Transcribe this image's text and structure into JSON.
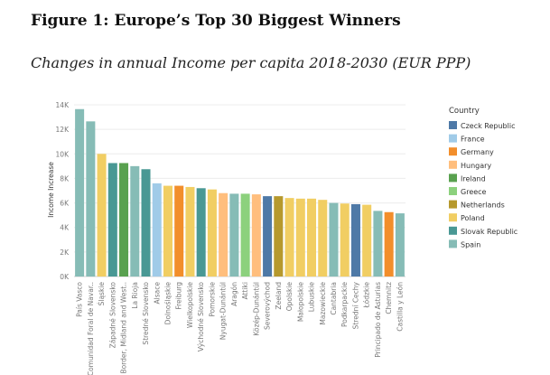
{
  "header": {
    "title": "Figure 1: Europe’s Top 30 Biggest Winners",
    "subtitle": "Changes in annual Income per capita 2018-2030 (EUR PPP)"
  },
  "chart_data": {
    "type": "bar",
    "ylabel": "Income Increase",
    "xlabel": "",
    "ylim": [
      0,
      14000
    ],
    "yticks": [
      {
        "value": 0,
        "label": "0K"
      },
      {
        "value": 2000,
        "label": "2K"
      },
      {
        "value": 4000,
        "label": "4K"
      },
      {
        "value": 6000,
        "label": "6K"
      },
      {
        "value": 8000,
        "label": "8K"
      },
      {
        "value": 10000,
        "label": "10K"
      },
      {
        "value": 12000,
        "label": "12K"
      },
      {
        "value": 14000,
        "label": "14K"
      }
    ],
    "grid": "horizontal",
    "legend_title": "Country",
    "legend_position": "right",
    "legend": [
      {
        "name": "Czeck Republic",
        "color": "#4e79a7"
      },
      {
        "name": "France",
        "color": "#a0cbe8"
      },
      {
        "name": "Germany",
        "color": "#f28e2b"
      },
      {
        "name": "Hungary",
        "color": "#ffbe7d"
      },
      {
        "name": "Ireland",
        "color": "#59a14f"
      },
      {
        "name": "Greece",
        "color": "#8cd17d"
      },
      {
        "name": "Netherlands",
        "color": "#b6992d"
      },
      {
        "name": "Poland",
        "color": "#f1ce63"
      },
      {
        "name": "Slovak Republic",
        "color": "#499894"
      },
      {
        "name": "Spain",
        "color": "#86bcb6"
      }
    ],
    "categories": [
      "País Vasco",
      "Comunidad Foral de Navar..",
      "Śląskie",
      "Západné Slovensko",
      "Border, Midland and West..",
      "La Rioja",
      "Stredné Slovensko",
      "Alsace",
      "Dolnośląskie",
      "Freiburg",
      "Wielkopolskie",
      "Východné Slovensko",
      "Pomorskie",
      "Nyugat-Dunántúl",
      "Aragón",
      "Attiki",
      "Közép-Dunántúl",
      "Severovýchod",
      "Zeeland",
      "Opolskie",
      "Małopolskie",
      "Lubuskie",
      "Mazowieckie",
      "Cantabria",
      "Podkarpackie",
      "Strední Cechy",
      "Łódzkie",
      "Principado de Asturias",
      "Chemnitz",
      "Castilla y León"
    ],
    "values": [
      13650,
      12650,
      10000,
      9250,
      9250,
      9000,
      8750,
      7600,
      7400,
      7400,
      7300,
      7200,
      7100,
      6800,
      6750,
      6750,
      6700,
      6550,
      6550,
      6400,
      6350,
      6350,
      6250,
      6000,
      5950,
      5900,
      5850,
      5350,
      5250,
      5150
    ],
    "countries": [
      "Spain",
      "Spain",
      "Poland",
      "Slovak Republic",
      "Ireland",
      "Spain",
      "Slovak Republic",
      "France",
      "Poland",
      "Germany",
      "Poland",
      "Slovak Republic",
      "Poland",
      "Hungary",
      "Spain",
      "Greece",
      "Hungary",
      "Czeck Republic",
      "Netherlands",
      "Poland",
      "Poland",
      "Poland",
      "Poland",
      "Spain",
      "Poland",
      "Czeck Republic",
      "Poland",
      "Spain",
      "Germany",
      "Spain"
    ]
  }
}
